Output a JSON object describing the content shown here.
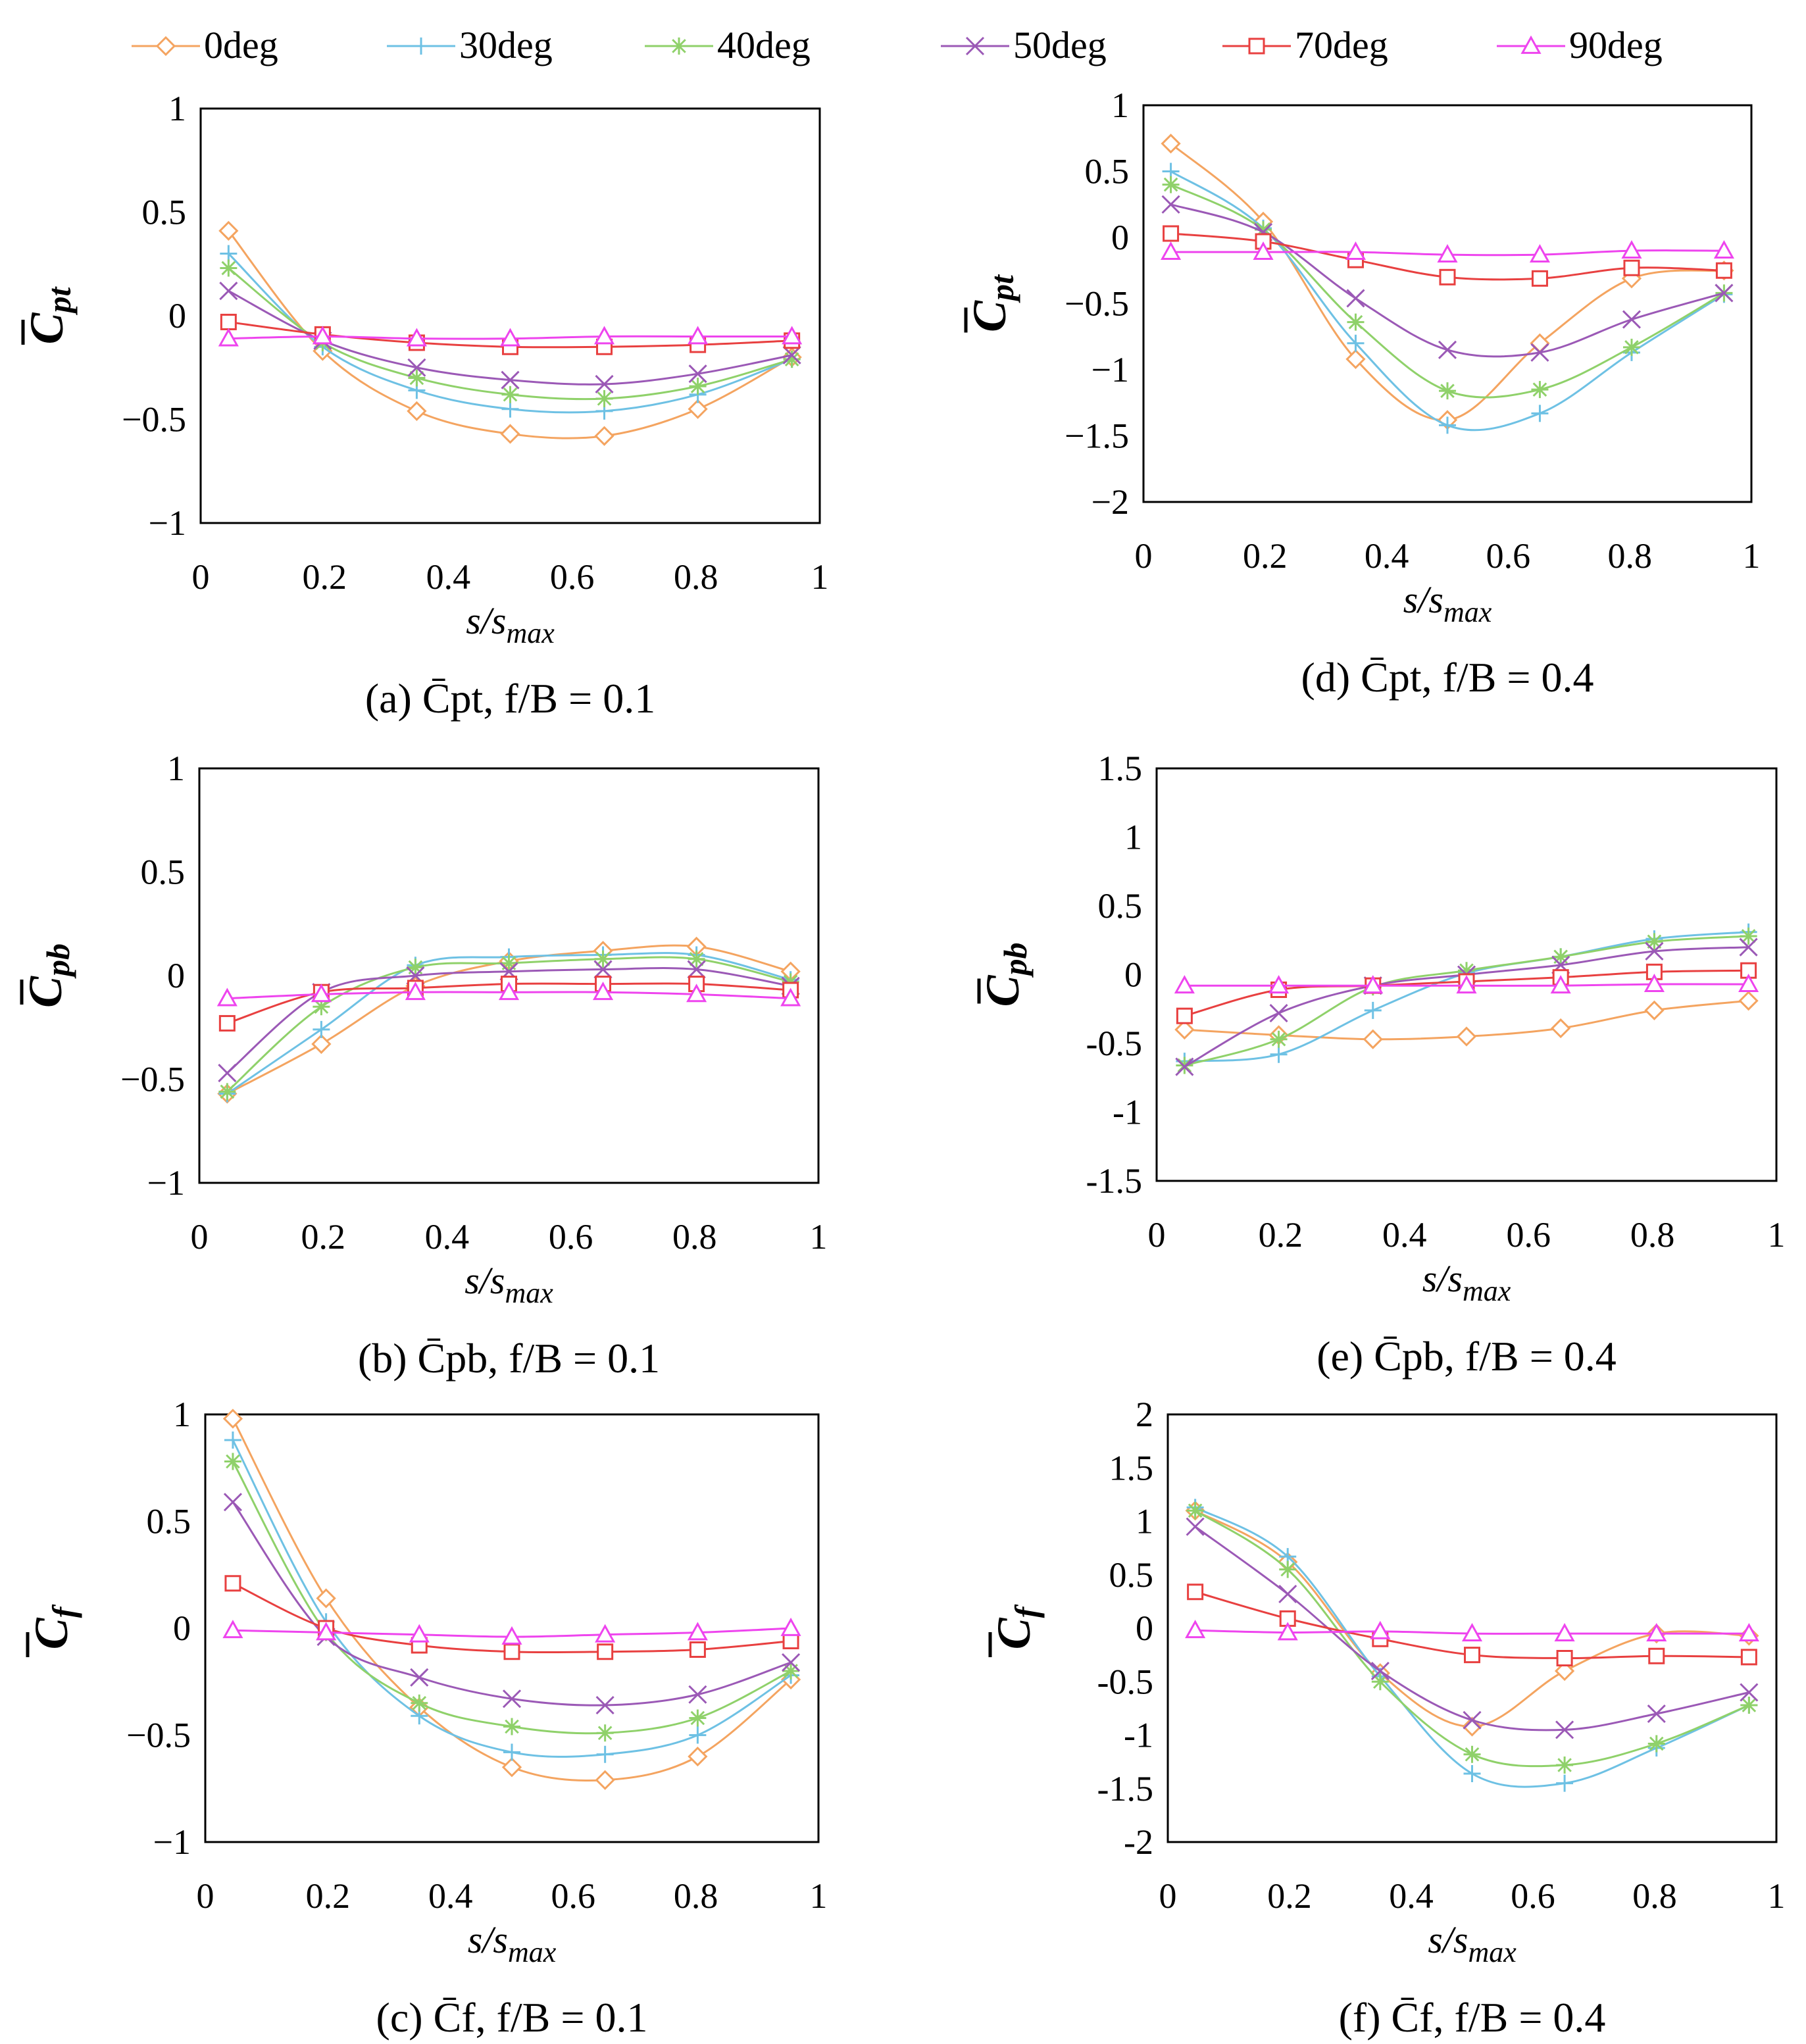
{
  "legend": {
    "items": [
      {
        "name": "0deg",
        "color": "#F4A460",
        "marker": "diamond"
      },
      {
        "name": "30deg",
        "color": "#6EC1E4",
        "marker": "plus"
      },
      {
        "name": "40deg",
        "color": "#8FD16A",
        "marker": "star"
      },
      {
        "name": "50deg",
        "color": "#9B59B6",
        "marker": "cross"
      },
      {
        "name": "70deg",
        "color": "#E84040",
        "marker": "square"
      },
      {
        "name": "90deg",
        "color": "#EE44EE",
        "marker": "triangle"
      }
    ]
  },
  "chart_data": [
    {
      "id": "a",
      "type": "line",
      "ylabel": "C",
      "ylabel_sub": "pt",
      "xlabel": "s/s",
      "xlabel_sub": "max",
      "caption": "(a) C̄pt, f/B = 0.1",
      "xlim": [
        0,
        1
      ],
      "ylim": [
        -1,
        1
      ],
      "xticks": [
        0,
        0.2,
        0.4,
        0.6,
        0.8,
        1
      ],
      "xtick_labels": [
        "0",
        "0.2",
        "0.4",
        "0.6",
        "0.8",
        "1"
      ],
      "yticks": [
        -1,
        -0.5,
        0,
        0.5,
        1
      ],
      "ytick_labels": [
        "−1",
        "−0.5",
        "0",
        "0.5",
        "1"
      ],
      "x": [
        0.045,
        0.197,
        0.349,
        0.5,
        0.652,
        0.803,
        0.955
      ],
      "series": [
        {
          "name": "0deg",
          "values": [
            0.41,
            -0.17,
            -0.46,
            -0.57,
            -0.58,
            -0.45,
            -0.2
          ]
        },
        {
          "name": "30deg",
          "values": [
            0.3,
            -0.15,
            -0.36,
            -0.45,
            -0.46,
            -0.38,
            -0.21
          ]
        },
        {
          "name": "40deg",
          "values": [
            0.23,
            -0.13,
            -0.3,
            -0.38,
            -0.4,
            -0.34,
            -0.21
          ]
        },
        {
          "name": "50deg",
          "values": [
            0.12,
            -0.12,
            -0.25,
            -0.31,
            -0.33,
            -0.28,
            -0.19
          ]
        },
        {
          "name": "70deg",
          "values": [
            -0.03,
            -0.09,
            -0.13,
            -0.15,
            -0.15,
            -0.14,
            -0.12
          ]
        },
        {
          "name": "90deg",
          "values": [
            -0.11,
            -0.1,
            -0.11,
            -0.11,
            -0.1,
            -0.1,
            -0.1
          ]
        }
      ]
    },
    {
      "id": "b",
      "type": "line",
      "ylabel": "C",
      "ylabel_sub": "pb",
      "xlabel": "s/s",
      "xlabel_sub": "max",
      "caption": "(b) C̄pb, f/B = 0.1",
      "xlim": [
        0,
        1
      ],
      "ylim": [
        -1,
        1
      ],
      "xticks": [
        0,
        0.2,
        0.4,
        0.6,
        0.8,
        1
      ],
      "xtick_labels": [
        "0",
        "0.2",
        "0.4",
        "0.6",
        "0.8",
        "1"
      ],
      "yticks": [
        -1,
        -0.5,
        0,
        0.5,
        1
      ],
      "ytick_labels": [
        "−1",
        "−0.5",
        "0",
        "0.5",
        "1"
      ],
      "x": [
        0.045,
        0.197,
        0.349,
        0.5,
        0.652,
        0.803,
        0.955
      ],
      "series": [
        {
          "name": "0deg",
          "values": [
            -0.57,
            -0.33,
            -0.05,
            0.07,
            0.12,
            0.14,
            0.02
          ]
        },
        {
          "name": "30deg",
          "values": [
            -0.57,
            -0.26,
            0.05,
            0.09,
            0.1,
            0.1,
            -0.02
          ]
        },
        {
          "name": "40deg",
          "values": [
            -0.56,
            -0.15,
            0.04,
            0.06,
            0.08,
            0.08,
            -0.03
          ]
        },
        {
          "name": "50deg",
          "values": [
            -0.47,
            -0.08,
            0.0,
            0.02,
            0.03,
            0.03,
            -0.05
          ]
        },
        {
          "name": "70deg",
          "values": [
            -0.23,
            -0.08,
            -0.06,
            -0.04,
            -0.04,
            -0.04,
            -0.07
          ]
        },
        {
          "name": "90deg",
          "values": [
            -0.11,
            -0.09,
            -0.08,
            -0.08,
            -0.08,
            -0.09,
            -0.11
          ]
        }
      ]
    },
    {
      "id": "c",
      "type": "line",
      "ylabel": "C",
      "ylabel_sub": "f",
      "xlabel": "s/s",
      "xlabel_sub": "max",
      "caption": "(c) C̄f, f/B = 0.1",
      "xlim": [
        0,
        1
      ],
      "ylim": [
        -1,
        1
      ],
      "xticks": [
        0,
        0.2,
        0.4,
        0.6,
        0.8,
        1
      ],
      "xtick_labels": [
        "0",
        "0.2",
        "0.4",
        "0.6",
        "0.8",
        "1"
      ],
      "yticks": [
        -1,
        -0.5,
        0,
        0.5,
        1
      ],
      "ytick_labels": [
        "−1",
        "−0.5",
        "0",
        "0.5",
        "1"
      ],
      "x": [
        0.045,
        0.197,
        0.349,
        0.5,
        0.652,
        0.803,
        0.955
      ],
      "series": [
        {
          "name": "0deg",
          "values": [
            0.98,
            0.14,
            -0.37,
            -0.65,
            -0.71,
            -0.6,
            -0.24
          ]
        },
        {
          "name": "30deg",
          "values": [
            0.88,
            0.03,
            -0.41,
            -0.58,
            -0.59,
            -0.5,
            -0.22
          ]
        },
        {
          "name": "40deg",
          "values": [
            0.78,
            -0.02,
            -0.35,
            -0.46,
            -0.49,
            -0.42,
            -0.2
          ]
        },
        {
          "name": "50deg",
          "values": [
            0.59,
            -0.04,
            -0.23,
            -0.33,
            -0.36,
            -0.31,
            -0.16
          ]
        },
        {
          "name": "70deg",
          "values": [
            0.21,
            0.0,
            -0.08,
            -0.11,
            -0.11,
            -0.1,
            -0.06
          ]
        },
        {
          "name": "90deg",
          "values": [
            -0.01,
            -0.02,
            -0.03,
            -0.04,
            -0.03,
            -0.02,
            0.0
          ]
        }
      ]
    },
    {
      "id": "d",
      "type": "line",
      "ylabel": "C",
      "ylabel_sub": "pt",
      "xlabel": "s/s",
      "xlabel_sub": "max",
      "caption": "(d) C̄pt, f/B = 0.4",
      "xlim": [
        0,
        1
      ],
      "ylim": [
        -2,
        1
      ],
      "xticks": [
        0,
        0.2,
        0.4,
        0.6,
        0.8,
        1
      ],
      "xtick_labels": [
        "0",
        "0.2",
        "0.4",
        "0.6",
        "0.8",
        "1"
      ],
      "yticks": [
        -2,
        -1.5,
        -1,
        -0.5,
        0,
        0.5,
        1
      ],
      "ytick_labels": [
        "−2",
        "−1.5",
        "−1",
        "−0.5",
        "0",
        "0.5",
        "1"
      ],
      "x": [
        0.045,
        0.197,
        0.349,
        0.5,
        0.652,
        0.803,
        0.955
      ],
      "series": [
        {
          "name": "0deg",
          "values": [
            0.71,
            0.12,
            -0.92,
            -1.38,
            -0.8,
            -0.31,
            -0.25
          ]
        },
        {
          "name": "30deg",
          "values": [
            0.5,
            0.07,
            -0.8,
            -1.42,
            -1.33,
            -0.87,
            -0.43
          ]
        },
        {
          "name": "40deg",
          "values": [
            0.4,
            0.06,
            -0.64,
            -1.16,
            -1.15,
            -0.83,
            -0.42
          ]
        },
        {
          "name": "50deg",
          "values": [
            0.25,
            0.04,
            -0.46,
            -0.85,
            -0.87,
            -0.62,
            -0.42
          ]
        },
        {
          "name": "70deg",
          "values": [
            0.03,
            -0.03,
            -0.17,
            -0.3,
            -0.31,
            -0.23,
            -0.25
          ]
        },
        {
          "name": "90deg",
          "values": [
            -0.11,
            -0.11,
            -0.11,
            -0.13,
            -0.13,
            -0.1,
            -0.1
          ]
        }
      ]
    },
    {
      "id": "e",
      "type": "line",
      "ylabel": "C",
      "ylabel_sub": "pb",
      "xlabel": "s/s",
      "xlabel_sub": "max",
      "caption": "(e) C̄pb, f/B = 0.4",
      "xlim": [
        0,
        1
      ],
      "ylim": [
        -1.5,
        1.5
      ],
      "xticks": [
        0,
        0.2,
        0.4,
        0.6,
        0.8,
        1
      ],
      "xtick_labels": [
        "0",
        "0.2",
        "0.4",
        "0.6",
        "0.8",
        "1"
      ],
      "yticks": [
        -1.5,
        -1,
        -0.5,
        0,
        0.5,
        1,
        1.5
      ],
      "ytick_labels": [
        "-1.5",
        "-1",
        "-0.5",
        "0",
        "0.5",
        "1",
        "1.5"
      ],
      "x": [
        0.045,
        0.197,
        0.349,
        0.5,
        0.652,
        0.803,
        0.955
      ],
      "series": [
        {
          "name": "0deg",
          "values": [
            -0.4,
            -0.44,
            -0.47,
            -0.45,
            -0.39,
            -0.26,
            -0.19
          ]
        },
        {
          "name": "30deg",
          "values": [
            -0.63,
            -0.58,
            -0.26,
            0.01,
            0.13,
            0.26,
            0.31
          ]
        },
        {
          "name": "40deg",
          "values": [
            -0.66,
            -0.47,
            -0.09,
            0.03,
            0.13,
            0.24,
            0.28
          ]
        },
        {
          "name": "50deg",
          "values": [
            -0.67,
            -0.28,
            -0.08,
            0.0,
            0.07,
            0.17,
            0.2
          ]
        },
        {
          "name": "70deg",
          "values": [
            -0.3,
            -0.11,
            -0.08,
            -0.05,
            -0.02,
            0.02,
            0.03
          ]
        },
        {
          "name": "90deg",
          "values": [
            -0.08,
            -0.08,
            -0.08,
            -0.08,
            -0.08,
            -0.07,
            -0.07
          ]
        }
      ]
    },
    {
      "id": "f",
      "type": "line",
      "ylabel": "C",
      "ylabel_sub": "f",
      "xlabel": "s/s",
      "xlabel_sub": "max",
      "caption": "(f) C̄f, f/B = 0.4",
      "xlim": [
        0,
        1
      ],
      "ylim": [
        -2,
        2
      ],
      "xticks": [
        0,
        0.2,
        0.4,
        0.6,
        0.8,
        1
      ],
      "xtick_labels": [
        "0",
        "0.2",
        "0.4",
        "0.6",
        "0.8",
        "1"
      ],
      "yticks": [
        -2,
        -1.5,
        -1,
        -0.5,
        0,
        0.5,
        1,
        1.5,
        2
      ],
      "ytick_labels": [
        "-2",
        "-1.5",
        "-1",
        "-0.5",
        "0",
        "0.5",
        "1",
        "1.5",
        "2"
      ],
      "x": [
        0.045,
        0.197,
        0.349,
        0.5,
        0.652,
        0.803,
        0.955
      ],
      "series": [
        {
          "name": "0deg",
          "values": [
            1.1,
            0.62,
            -0.42,
            -0.92,
            -0.4,
            -0.05,
            -0.07
          ]
        },
        {
          "name": "30deg",
          "values": [
            1.13,
            0.67,
            -0.45,
            -1.36,
            -1.45,
            -1.12,
            -0.72
          ]
        },
        {
          "name": "40deg",
          "values": [
            1.1,
            0.55,
            -0.5,
            -1.18,
            -1.28,
            -1.08,
            -0.72
          ]
        },
        {
          "name": "50deg",
          "values": [
            0.95,
            0.32,
            -0.4,
            -0.86,
            -0.95,
            -0.8,
            -0.6
          ]
        },
        {
          "name": "70deg",
          "values": [
            0.34,
            0.09,
            -0.1,
            -0.25,
            -0.28,
            -0.26,
            -0.27
          ]
        },
        {
          "name": "90deg",
          "values": [
            -0.02,
            -0.04,
            -0.03,
            -0.05,
            -0.05,
            -0.05,
            -0.05
          ]
        }
      ]
    }
  ]
}
